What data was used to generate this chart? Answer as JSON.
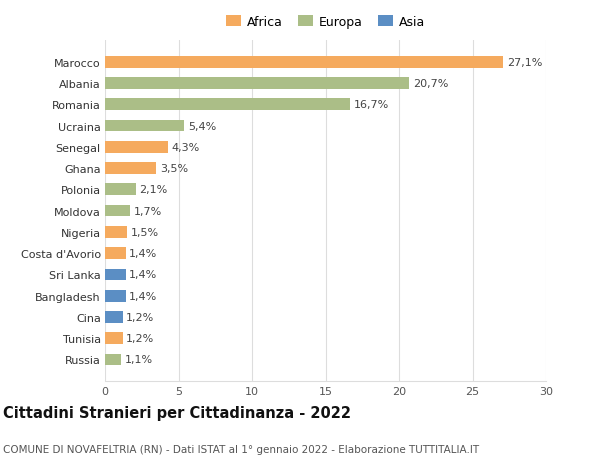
{
  "countries": [
    "Russia",
    "Tunisia",
    "Cina",
    "Bangladesh",
    "Sri Lanka",
    "Costa d'Avorio",
    "Nigeria",
    "Moldova",
    "Polonia",
    "Ghana",
    "Senegal",
    "Ucraina",
    "Romania",
    "Albania",
    "Marocco"
  ],
  "values": [
    1.1,
    1.2,
    1.2,
    1.4,
    1.4,
    1.4,
    1.5,
    1.7,
    2.1,
    3.5,
    4.3,
    5.4,
    16.7,
    20.7,
    27.1
  ],
  "labels": [
    "1,1%",
    "1,2%",
    "1,2%",
    "1,4%",
    "1,4%",
    "1,4%",
    "1,5%",
    "1,7%",
    "2,1%",
    "3,5%",
    "4,3%",
    "5,4%",
    "16,7%",
    "20,7%",
    "27,1%"
  ],
  "continents": [
    "Europa",
    "Africa",
    "Asia",
    "Asia",
    "Asia",
    "Africa",
    "Africa",
    "Europa",
    "Europa",
    "Africa",
    "Africa",
    "Europa",
    "Europa",
    "Europa",
    "Africa"
  ],
  "colors": {
    "Africa": "#F5AA5E",
    "Europa": "#ABBE87",
    "Asia": "#5B8EC4"
  },
  "legend_labels": [
    "Africa",
    "Europa",
    "Asia"
  ],
  "legend_colors": [
    "#F5AA5E",
    "#ABBE87",
    "#5B8EC4"
  ],
  "title": "Cittadini Stranieri per Cittadinanza - 2022",
  "subtitle": "COMUNE DI NOVAFELTRIA (RN) - Dati ISTAT al 1° gennaio 2022 - Elaborazione TUTTITALIA.IT",
  "xlim": [
    0,
    30
  ],
  "xticks": [
    0,
    5,
    10,
    15,
    20,
    25,
    30
  ],
  "background_color": "#ffffff",
  "grid_color": "#dddddd",
  "bar_height": 0.55,
  "title_fontsize": 10.5,
  "subtitle_fontsize": 7.5,
  "label_fontsize": 8,
  "tick_fontsize": 8
}
